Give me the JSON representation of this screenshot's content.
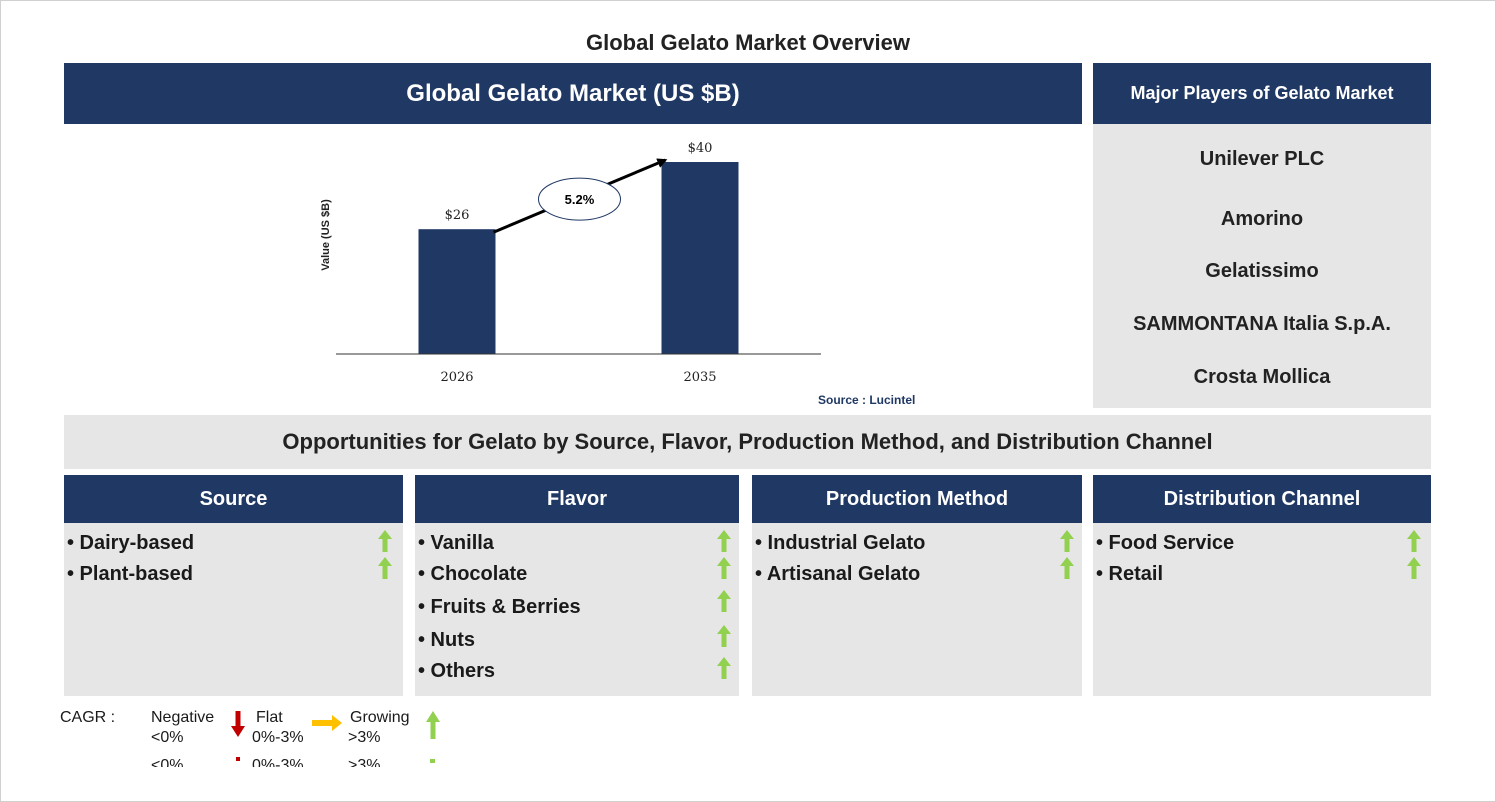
{
  "page_title": "Global Gelato Market Overview",
  "chart_panel": {
    "header": "Global Gelato Market (US $B)",
    "source": "Source : Lucintel"
  },
  "chart_data": {
    "type": "bar",
    "title": "Global Gelato Market (US $B)",
    "categories": [
      "2026",
      "2035"
    ],
    "values": [
      26,
      40
    ],
    "value_labels": [
      "$26",
      "$40"
    ],
    "ylabel": "Value (US $B)",
    "xlabel": "",
    "ylim": [
      0,
      40
    ],
    "cagr_label": "5.2%",
    "bar_color": "#203864"
  },
  "players": {
    "header": "Major Players of Gelato Market",
    "items": [
      "Unilever PLC",
      "Amorino",
      "Gelatissimo",
      "SAMMONTANA Italia S.p.A.",
      "Crosta Mollica"
    ]
  },
  "opportunities": {
    "title": "Opportunities for Gelato by Source, Flavor, Production Method, and Distribution Channel",
    "columns": [
      {
        "header": "Source",
        "items": [
          "• Dairy-based",
          "• Plant-based"
        ]
      },
      {
        "header": "Flavor",
        "items": [
          "• Vanilla",
          "• Chocolate",
          "• Fruits & Berries",
          "• Nuts",
          "• Others"
        ]
      },
      {
        "header": "Production Method",
        "items": [
          "• Industrial Gelato",
          "• Artisanal Gelato"
        ]
      },
      {
        "header": "Distribution Channel",
        "items": [
          "• Food Service",
          "• Retail"
        ]
      }
    ]
  },
  "legend": {
    "cagr_label": "CAGR :",
    "negative": {
      "label": "Negative",
      "range": "<0%"
    },
    "flat": {
      "label": "Flat",
      "range": "0%-3%"
    },
    "growing": {
      "label": "Growing",
      "range": ">3%"
    }
  },
  "colors": {
    "navy": "#203864",
    "panel_gray": "#e7e6e6",
    "growth_green": "#92d050",
    "negative_red": "#c00000",
    "flat_orange": "#ffc000"
  }
}
